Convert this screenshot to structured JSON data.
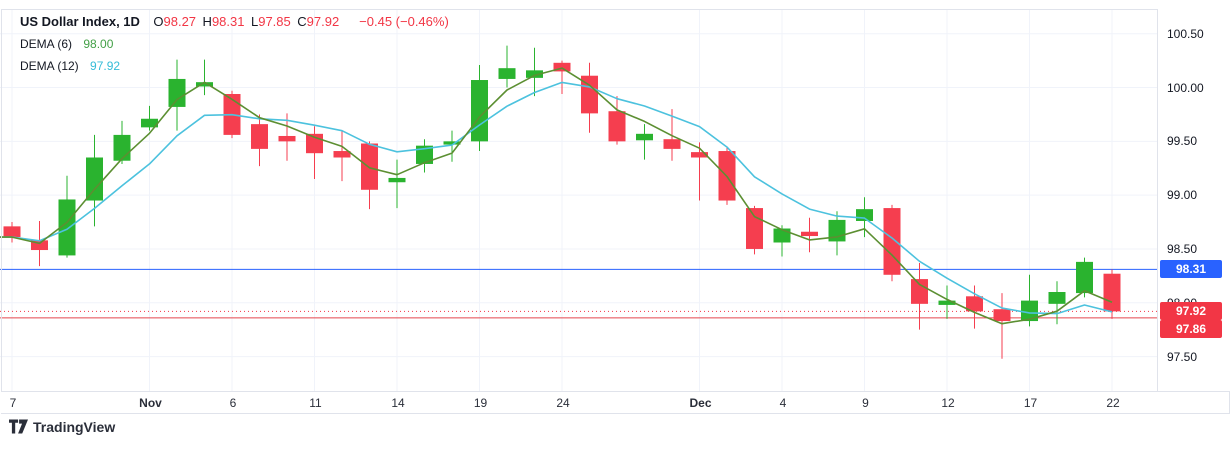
{
  "legend": {
    "title": "US Dollar Index, 1D",
    "ohlc": [
      {
        "prefix": "O",
        "value": "98.27"
      },
      {
        "prefix": "H",
        "value": "98.31"
      },
      {
        "prefix": "L",
        "value": "97.85"
      },
      {
        "prefix": "C",
        "value": "97.92"
      }
    ],
    "change": "−0.45 (−0.46%)",
    "indicators": [
      {
        "label": "DEMA (6)",
        "value": "98.00",
        "value_color": "#43a047"
      },
      {
        "label": "DEMA (12)",
        "value": "97.92",
        "value_color": "#36bcd8"
      }
    ]
  },
  "attribution": "TradingView",
  "colors": {
    "up": "#2ab32f",
    "down": "#f53e4f",
    "dema6_line": "#5c8f32",
    "dema12_line": "#4cc2de",
    "grid": "#f0f3fa",
    "axis_border": "#e0e3eb",
    "blue_level": "#2962ff",
    "red_level": "#e5464e",
    "price_line": "#f23645",
    "badge_blue": "#2962ff",
    "badge_red": "#f23645"
  },
  "chart_data": {
    "type": "candlestick",
    "symbol": "US Dollar Index",
    "timeframe": "1D",
    "ylim": [
      97.18,
      100.73
    ],
    "grid": true,
    "price_axis_labels": [
      "100.50",
      "100.00",
      "99.50",
      "99.00",
      "98.50",
      "98.00",
      "97.50"
    ],
    "time_ticks": [
      {
        "i": 0,
        "label": "7",
        "month": false
      },
      {
        "i": 5,
        "label": "Nov",
        "month": true
      },
      {
        "i": 8,
        "label": "6",
        "month": false
      },
      {
        "i": 11,
        "label": "11",
        "month": false
      },
      {
        "i": 14,
        "label": "14",
        "month": false
      },
      {
        "i": 17,
        "label": "19",
        "month": false
      },
      {
        "i": 20,
        "label": "24",
        "month": false
      },
      {
        "i": 25,
        "label": "Dec",
        "month": true
      },
      {
        "i": 28,
        "label": "4",
        "month": false
      },
      {
        "i": 31,
        "label": "9",
        "month": false
      },
      {
        "i": 34,
        "label": "12",
        "month": false
      },
      {
        "i": 37,
        "label": "17",
        "month": false
      },
      {
        "i": 40,
        "label": "22",
        "month": false
      }
    ],
    "candles_ohlc": [
      [
        98.71,
        98.75,
        98.56,
        98.61
      ],
      [
        98.58,
        98.76,
        98.34,
        98.49
      ],
      [
        98.44,
        99.18,
        98.42,
        98.96
      ],
      [
        98.95,
        99.56,
        98.71,
        99.35
      ],
      [
        99.32,
        99.69,
        99.29,
        99.56
      ],
      [
        99.63,
        99.83,
        99.6,
        99.71
      ],
      [
        99.82,
        100.26,
        99.6,
        100.08
      ],
      [
        100.01,
        100.26,
        99.93,
        100.05
      ],
      [
        99.94,
        99.97,
        99.53,
        99.56
      ],
      [
        99.66,
        99.75,
        99.27,
        99.43
      ],
      [
        99.55,
        99.76,
        99.32,
        99.5
      ],
      [
        99.57,
        99.64,
        99.15,
        99.39
      ],
      [
        99.41,
        99.6,
        99.13,
        99.35
      ],
      [
        99.48,
        99.5,
        98.87,
        99.05
      ],
      [
        99.12,
        99.33,
        98.88,
        99.16
      ],
      [
        99.29,
        99.52,
        99.21,
        99.46
      ],
      [
        99.47,
        99.6,
        99.31,
        99.5
      ],
      [
        99.5,
        100.21,
        99.41,
        100.07
      ],
      [
        100.08,
        100.39,
        100.0,
        100.18
      ],
      [
        100.09,
        100.37,
        99.92,
        100.16
      ],
      [
        100.23,
        100.25,
        99.94,
        100.15
      ],
      [
        100.11,
        100.23,
        99.58,
        99.76
      ],
      [
        99.78,
        99.92,
        99.47,
        99.5
      ],
      [
        99.51,
        99.66,
        99.33,
        99.57
      ],
      [
        99.52,
        99.8,
        99.32,
        99.43
      ],
      [
        99.4,
        99.49,
        98.95,
        99.35
      ],
      [
        99.41,
        99.44,
        98.91,
        98.95
      ],
      [
        98.88,
        98.9,
        98.45,
        98.5
      ],
      [
        98.56,
        98.72,
        98.43,
        98.69
      ],
      [
        98.66,
        98.79,
        98.47,
        98.62
      ],
      [
        98.57,
        98.85,
        98.44,
        98.77
      ],
      [
        98.76,
        98.98,
        98.61,
        98.87
      ],
      [
        98.88,
        98.91,
        98.2,
        98.26
      ],
      [
        98.22,
        98.37,
        97.75,
        97.99
      ],
      [
        97.98,
        98.16,
        97.85,
        98.02
      ],
      [
        98.06,
        98.16,
        97.76,
        97.92
      ],
      [
        97.94,
        98.09,
        97.48,
        97.83
      ],
      [
        97.83,
        98.26,
        97.78,
        98.02
      ],
      [
        97.99,
        98.2,
        97.8,
        98.1
      ],
      [
        98.09,
        98.42,
        98.05,
        98.38
      ],
      [
        98.27,
        98.31,
        97.85,
        97.92
      ]
    ],
    "indicator_series": [
      {
        "name": "DEMA",
        "period": 6,
        "last_value": "98.00"
      },
      {
        "name": "DEMA",
        "period": 12,
        "last_value": "97.92"
      }
    ],
    "levels": [
      {
        "price": 98.31,
        "badge": "98.31",
        "style": "solid",
        "color_key": "blue_level",
        "badge_key": "badge_blue"
      },
      {
        "price": 97.92,
        "badge": "97.92",
        "style": "dotted",
        "color_key": "price_line",
        "badge_key": "badge_red"
      },
      {
        "price": 97.86,
        "badge": "97.86",
        "style": "solid",
        "color_key": "red_level",
        "badge_key": "badge_red"
      }
    ]
  }
}
